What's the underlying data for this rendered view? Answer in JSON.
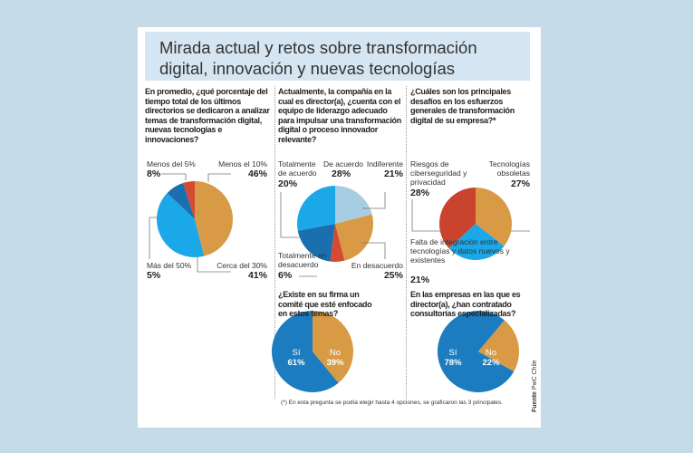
{
  "title": "Mirada actual y retos sobre transformación digital, innovación y nuevas tecnologías",
  "footnote": "(*) En esta pregunta se podía elegir hasta 4 opciones, se graficaron las 3 principales.",
  "source_label": "Fuente",
  "source": "PwC Chile",
  "chart_data": [
    {
      "type": "pie",
      "title": "En promedio, ¿qué porcentaje del tiempo total de los últimos directorios se dedicaron a analizar temas de transformación digital, nuevas tecnologías e innovaciones?",
      "slices": [
        {
          "label": "Menos el 10%",
          "value": 46,
          "color": "#d99a45"
        },
        {
          "label": "Cerca del 30%",
          "value": 41,
          "color": "#1aa8e8"
        },
        {
          "label": "Menos del 5%",
          "value": 8,
          "color": "#1b6fae"
        },
        {
          "label": "Más del 50%",
          "value": 5,
          "color": "#d54a30"
        }
      ]
    },
    {
      "type": "pie",
      "title": "Actualmente, la compañía en la cual es director(a), ¿cuenta con el equipo de liderazgo adecuado para impulsar una transformación digital o proceso innovador relevante?",
      "slices": [
        {
          "label": "Indiferente",
          "value": 21,
          "color": "#a7cde3"
        },
        {
          "label": "En desacuerdo",
          "value": 25,
          "color": "#d99a45"
        },
        {
          "label": "Totalmente en desacuerdo",
          "value": 6,
          "color": "#d54a30"
        },
        {
          "label": "Totalmente de acuerdo",
          "value": 20,
          "color": "#1b6fae"
        },
        {
          "label": "De acuerdo",
          "value": 28,
          "color": "#1aa8e8"
        }
      ]
    },
    {
      "type": "pie",
      "title": "¿Cuáles son los principales desafíos en los esfuerzos generales de transformación digital de su empresa?",
      "title_suffix": "*",
      "slices": [
        {
          "label": "Tecnologías obsoletas",
          "value": 27,
          "color": "#d99a45"
        },
        {
          "label": "Falta de integración entre tecnologías y datos nuevos y existentes",
          "value": 21,
          "color": "#1aa8e8"
        },
        {
          "label": "Riesgos de ciberseguridad y privacidad",
          "value": 28,
          "color": "#c9432f"
        }
      ]
    },
    {
      "type": "pie",
      "title": "¿Existe en su firma un comité que esté enfocado en estos temas?",
      "slices": [
        {
          "label": "No",
          "value": 39,
          "color": "#d99a45"
        },
        {
          "label": "Sí",
          "value": 61,
          "color": "#1b7cc0"
        }
      ]
    },
    {
      "type": "pie",
      "title": "En las empresas en las que es director(a), ¿han contratado consultorías especializadas?",
      "slices": [
        {
          "label": "No",
          "value": 22,
          "color": "#d99a45"
        },
        {
          "label": "Sí",
          "value": 78,
          "color": "#1b7cc0"
        }
      ]
    }
  ]
}
